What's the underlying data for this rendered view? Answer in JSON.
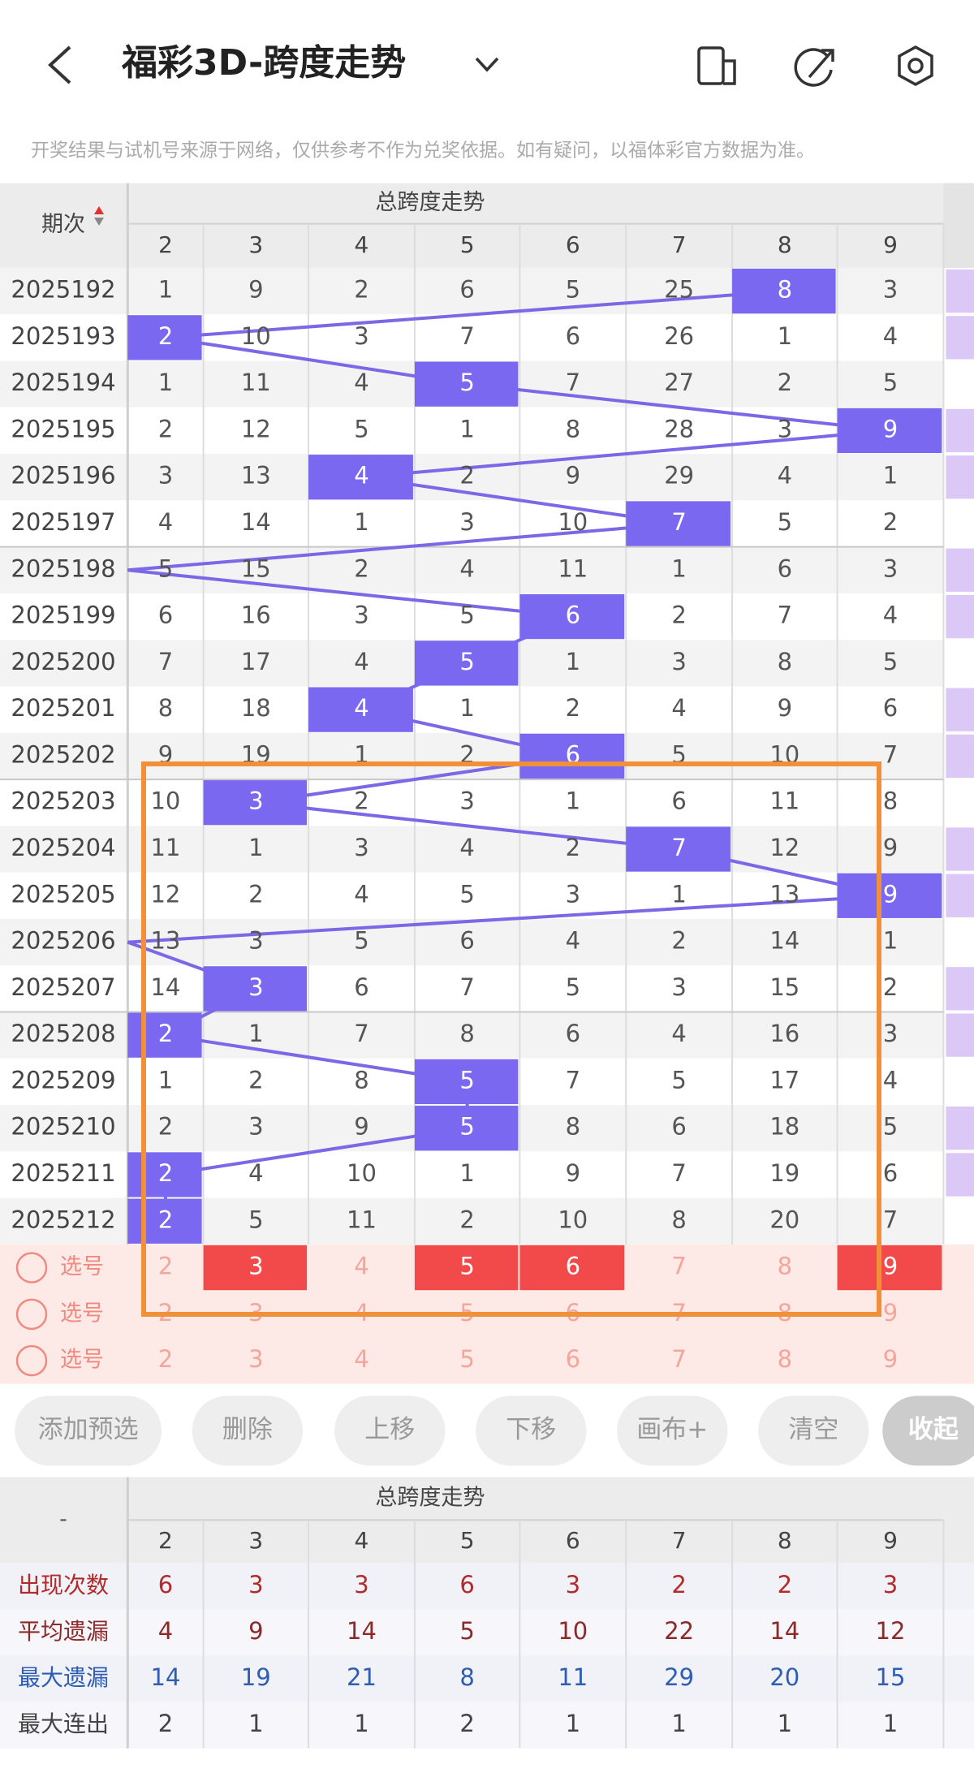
{
  "header": {
    "title": "福彩3D-跨度走势",
    "notice": "开奖结果与试机号来源于网络，仅供参考不作为兑奖依据。如有疑问，以福体彩官方数据为准。"
  },
  "table": {
    "group_title": "总跨度走势",
    "period_label": "期次",
    "columns": [
      2,
      3,
      4,
      5,
      6,
      7,
      8,
      9
    ],
    "rows": [
      {
        "period": "2025192",
        "cells": [
          1,
          9,
          2,
          6,
          5,
          25,
          null,
          3
        ],
        "span": 8
      },
      {
        "period": "2025193",
        "cells": [
          null,
          10,
          3,
          7,
          6,
          26,
          1,
          4
        ],
        "span": 2
      },
      {
        "period": "2025194",
        "cells": [
          1,
          11,
          4,
          null,
          7,
          27,
          2,
          5
        ],
        "span": 5
      },
      {
        "period": "2025195",
        "cells": [
          2,
          12,
          5,
          1,
          8,
          28,
          3,
          null
        ],
        "span": 9
      },
      {
        "period": "2025196",
        "cells": [
          3,
          13,
          null,
          2,
          9,
          29,
          4,
          1
        ],
        "span": 4
      },
      {
        "period": "2025197",
        "cells": [
          4,
          14,
          1,
          3,
          10,
          null,
          5,
          2
        ],
        "span": 7
      },
      {
        "period": "2025198",
        "cells": [
          5,
          15,
          2,
          4,
          11,
          1,
          6,
          3
        ],
        "span": null
      },
      {
        "period": "2025199",
        "cells": [
          6,
          16,
          3,
          5,
          null,
          2,
          7,
          4
        ],
        "span": 6
      },
      {
        "period": "2025200",
        "cells": [
          7,
          17,
          4,
          null,
          1,
          3,
          8,
          5
        ],
        "span": 5
      },
      {
        "period": "2025201",
        "cells": [
          8,
          18,
          null,
          1,
          2,
          4,
          9,
          6
        ],
        "span": 4
      },
      {
        "period": "2025202",
        "cells": [
          9,
          19,
          1,
          2,
          null,
          5,
          10,
          7
        ],
        "span": 6
      },
      {
        "period": "2025203",
        "cells": [
          10,
          null,
          2,
          3,
          1,
          6,
          11,
          8
        ],
        "span": 3
      },
      {
        "period": "2025204",
        "cells": [
          11,
          1,
          3,
          4,
          2,
          null,
          12,
          9
        ],
        "span": 7
      },
      {
        "period": "2025205",
        "cells": [
          12,
          2,
          4,
          5,
          3,
          1,
          13,
          null
        ],
        "span": 9
      },
      {
        "period": "2025206",
        "cells": [
          13,
          3,
          5,
          6,
          4,
          2,
          14,
          1
        ],
        "span": null
      },
      {
        "period": "2025207",
        "cells": [
          14,
          null,
          6,
          7,
          5,
          3,
          15,
          2
        ],
        "span": 3
      },
      {
        "period": "2025208",
        "cells": [
          null,
          1,
          7,
          8,
          6,
          4,
          16,
          3
        ],
        "span": 2
      },
      {
        "period": "2025209",
        "cells": [
          1,
          2,
          8,
          null,
          7,
          5,
          17,
          4
        ],
        "span": 5
      },
      {
        "period": "2025210",
        "cells": [
          2,
          3,
          9,
          null,
          8,
          6,
          18,
          5
        ],
        "span": 5
      },
      {
        "period": "2025211",
        "cells": [
          null,
          4,
          10,
          1,
          9,
          7,
          19,
          6
        ],
        "span": 2
      },
      {
        "period": "2025212",
        "cells": [
          null,
          5,
          11,
          2,
          10,
          8,
          20,
          7
        ],
        "span": 2
      }
    ]
  },
  "selection": {
    "rows": [
      {
        "label": "选号",
        "numbers": [
          2,
          3,
          4,
          5,
          6,
          7,
          8,
          9
        ],
        "selected": [
          false,
          true,
          false,
          true,
          true,
          false,
          false,
          true
        ]
      },
      {
        "label": "选号",
        "numbers": [
          2,
          3,
          4,
          5,
          6,
          7,
          8,
          9
        ],
        "selected": [
          false,
          false,
          false,
          false,
          false,
          false,
          false,
          false
        ]
      },
      {
        "label": "选号",
        "numbers": [
          2,
          3,
          4,
          5,
          6,
          7,
          8,
          9
        ],
        "selected": [
          false,
          false,
          false,
          false,
          false,
          false,
          false,
          false
        ]
      }
    ]
  },
  "buttons": [
    "添加预选",
    "删除",
    "上移",
    "下移",
    "画布+",
    "清空",
    "收起"
  ],
  "stats": {
    "corner": "-",
    "group_title": "总跨度走势",
    "columns": [
      2,
      3,
      4,
      5,
      6,
      7,
      8,
      9
    ],
    "rows": [
      {
        "label": "出现次数",
        "color": "#b22a2a",
        "values": [
          6,
          3,
          3,
          6,
          3,
          2,
          2,
          3
        ]
      },
      {
        "label": "平均遗漏",
        "color": "#8c2a2a",
        "values": [
          4,
          9,
          14,
          5,
          10,
          22,
          14,
          12
        ]
      },
      {
        "label": "最大遗漏",
        "color": "#2f5db3",
        "values": [
          14,
          19,
          21,
          8,
          11,
          29,
          20,
          15
        ]
      },
      {
        "label": "最大连出",
        "color": "#444444",
        "values": [
          2,
          1,
          1,
          2,
          1,
          1,
          1,
          1
        ]
      }
    ]
  }
}
